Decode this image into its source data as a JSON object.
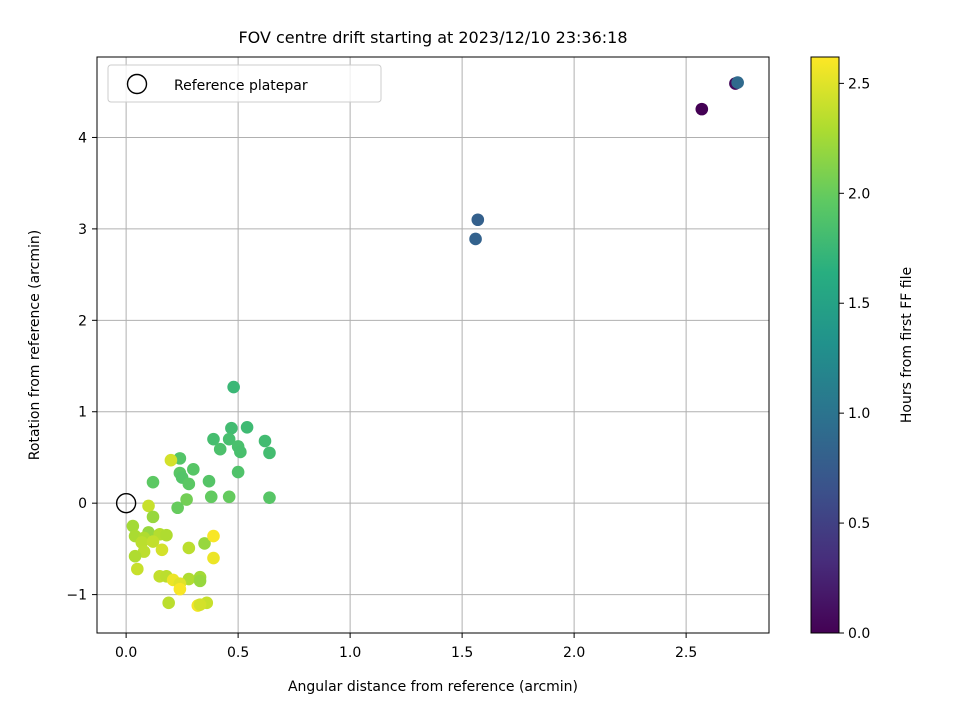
{
  "chart_data": {
    "type": "scatter",
    "title": "FOV centre drift starting at 2023/12/10 23:36:18",
    "xlabel": "Angular distance from reference (arcmin)",
    "ylabel": "Rotation from reference (arcmin)",
    "xlim": [
      -0.13,
      2.87
    ],
    "ylim": [
      -1.42,
      4.88
    ],
    "xticks": [
      "0.0",
      "0.5",
      "1.0",
      "1.5",
      "2.0",
      "2.5"
    ],
    "xtick_values": [
      0.0,
      0.5,
      1.0,
      1.5,
      2.0,
      2.5
    ],
    "yticks": [
      "−1",
      "0",
      "1",
      "2",
      "3",
      "4"
    ],
    "ytick_values": [
      -1,
      0,
      1,
      2,
      3,
      4
    ],
    "grid": true,
    "legend": {
      "position": "top-left",
      "entries": [
        "Reference platepar"
      ]
    },
    "reference_point": {
      "x": 0.0,
      "y": 0.0
    },
    "colorbar": {
      "label": "Hours from first FF file",
      "colormap": "viridis",
      "range": [
        0.0,
        2.62
      ],
      "ticks": [
        "0.0",
        "0.5",
        "1.0",
        "1.5",
        "2.0",
        "2.5"
      ],
      "tick_values": [
        0.0,
        0.5,
        1.0,
        1.5,
        2.0,
        2.5
      ]
    },
    "points": [
      {
        "x": 2.57,
        "y": 4.31,
        "c": 0.0
      },
      {
        "x": 2.72,
        "y": 4.59,
        "c": 0.05
      },
      {
        "x": 2.73,
        "y": 4.6,
        "c": 0.9
      },
      {
        "x": 1.57,
        "y": 3.1,
        "c": 0.8
      },
      {
        "x": 1.56,
        "y": 2.89,
        "c": 0.82
      },
      {
        "x": 0.48,
        "y": 1.27,
        "c": 1.75
      },
      {
        "x": 0.54,
        "y": 0.83,
        "c": 1.78
      },
      {
        "x": 0.47,
        "y": 0.82,
        "c": 1.8
      },
      {
        "x": 0.39,
        "y": 0.7,
        "c": 1.82
      },
      {
        "x": 0.46,
        "y": 0.7,
        "c": 1.83
      },
      {
        "x": 0.62,
        "y": 0.68,
        "c": 1.8
      },
      {
        "x": 0.5,
        "y": 0.62,
        "c": 1.85
      },
      {
        "x": 0.42,
        "y": 0.59,
        "c": 1.86
      },
      {
        "x": 0.51,
        "y": 0.56,
        "c": 1.84
      },
      {
        "x": 0.64,
        "y": 0.55,
        "c": 1.81
      },
      {
        "x": 0.24,
        "y": 0.49,
        "c": 1.9
      },
      {
        "x": 0.3,
        "y": 0.37,
        "c": 1.92
      },
      {
        "x": 0.5,
        "y": 0.34,
        "c": 1.88
      },
      {
        "x": 0.24,
        "y": 0.33,
        "c": 1.93
      },
      {
        "x": 0.25,
        "y": 0.28,
        "c": 1.9
      },
      {
        "x": 0.37,
        "y": 0.24,
        "c": 1.91
      },
      {
        "x": 0.12,
        "y": 0.23,
        "c": 1.95
      },
      {
        "x": 0.28,
        "y": 0.21,
        "c": 1.94
      },
      {
        "x": 0.38,
        "y": 0.07,
        "c": 1.98
      },
      {
        "x": 0.46,
        "y": 0.07,
        "c": 1.99
      },
      {
        "x": 0.64,
        "y": 0.06,
        "c": 1.92
      },
      {
        "x": 0.27,
        "y": 0.04,
        "c": 2.05
      },
      {
        "x": 0.23,
        "y": -0.05,
        "c": 2.0
      },
      {
        "x": 0.2,
        "y": 0.47,
        "c": 2.45
      },
      {
        "x": 0.1,
        "y": -0.03,
        "c": 2.4
      },
      {
        "x": 0.12,
        "y": -0.15,
        "c": 2.2
      },
      {
        "x": 0.03,
        "y": -0.25,
        "c": 2.25
      },
      {
        "x": 0.1,
        "y": -0.32,
        "c": 2.2
      },
      {
        "x": 0.04,
        "y": -0.36,
        "c": 2.28
      },
      {
        "x": 0.08,
        "y": -0.38,
        "c": 2.3
      },
      {
        "x": 0.15,
        "y": -0.34,
        "c": 2.32
      },
      {
        "x": 0.18,
        "y": -0.35,
        "c": 2.3
      },
      {
        "x": 0.07,
        "y": -0.43,
        "c": 2.35
      },
      {
        "x": 0.12,
        "y": -0.42,
        "c": 2.38
      },
      {
        "x": 0.35,
        "y": -0.44,
        "c": 2.2
      },
      {
        "x": 0.39,
        "y": -0.36,
        "c": 2.6
      },
      {
        "x": 0.28,
        "y": -0.49,
        "c": 2.35
      },
      {
        "x": 0.16,
        "y": -0.51,
        "c": 2.45
      },
      {
        "x": 0.08,
        "y": -0.53,
        "c": 2.36
      },
      {
        "x": 0.04,
        "y": -0.58,
        "c": 2.3
      },
      {
        "x": 0.39,
        "y": -0.6,
        "c": 2.55
      },
      {
        "x": 0.05,
        "y": -0.72,
        "c": 2.4
      },
      {
        "x": 0.15,
        "y": -0.8,
        "c": 2.38
      },
      {
        "x": 0.18,
        "y": -0.8,
        "c": 2.35
      },
      {
        "x": 0.28,
        "y": -0.83,
        "c": 2.3
      },
      {
        "x": 0.33,
        "y": -0.81,
        "c": 2.25
      },
      {
        "x": 0.21,
        "y": -0.84,
        "c": 2.55
      },
      {
        "x": 0.33,
        "y": -0.85,
        "c": 2.2
      },
      {
        "x": 0.24,
        "y": -0.88,
        "c": 2.5
      },
      {
        "x": 0.24,
        "y": -0.94,
        "c": 2.6
      },
      {
        "x": 0.19,
        "y": -1.09,
        "c": 2.35
      },
      {
        "x": 0.36,
        "y": -1.09,
        "c": 2.4
      },
      {
        "x": 0.32,
        "y": -1.12,
        "c": 2.58
      },
      {
        "x": 0.33,
        "y": -1.11,
        "c": 2.45
      }
    ]
  }
}
